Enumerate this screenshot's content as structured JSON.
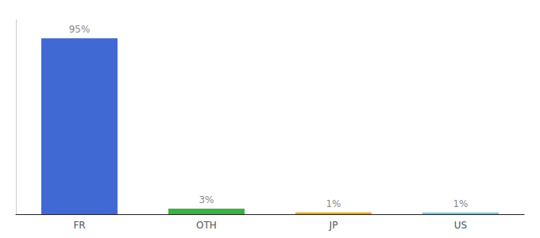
{
  "chart_data": {
    "type": "bar",
    "categories": [
      "FR",
      "OTH",
      "JP",
      "US"
    ],
    "values": [
      95,
      3,
      1,
      1
    ],
    "value_labels": [
      "95%",
      "3%",
      "1%",
      "1%"
    ],
    "colors": [
      "#4169d4",
      "#3cb043",
      "#f0a500",
      "#7ec8e3"
    ],
    "ylim": [
      0,
      105
    ],
    "grid": false,
    "data_labels": true,
    "tick_labels": "x"
  }
}
